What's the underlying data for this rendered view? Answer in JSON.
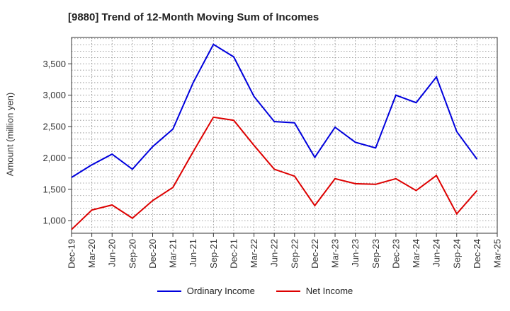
{
  "chart_data": {
    "type": "line",
    "title": "[9880]  Trend of 12-Month Moving Sum of Incomes",
    "xlabel": "",
    "ylabel": "Amount (million yen)",
    "categories": [
      "Dec-19",
      "Mar-20",
      "Jun-20",
      "Sep-20",
      "Dec-20",
      "Mar-21",
      "Jun-21",
      "Sep-21",
      "Dec-21",
      "Mar-22",
      "Jun-22",
      "Sep-22",
      "Dec-22",
      "Mar-23",
      "Jun-23",
      "Sep-23",
      "Dec-23",
      "Mar-24",
      "Jun-24",
      "Sep-24",
      "Dec-24",
      "Mar-25"
    ],
    "ylim": [
      800,
      3920
    ],
    "yticks": [
      1000,
      1500,
      2000,
      2500,
      3000,
      3500
    ],
    "ytick_labels": [
      "1,000",
      "1,500",
      "2,000",
      "2,500",
      "3,000",
      "3,500"
    ],
    "grid": true,
    "legend_position": "bottom-center",
    "series": [
      {
        "name": "Ordinary Income",
        "color": "#0000dd",
        "values": [
          1690,
          1890,
          2060,
          1820,
          2180,
          2460,
          3200,
          3810,
          3610,
          2980,
          2580,
          2560,
          2010,
          2490,
          2250,
          2160,
          3000,
          2880,
          3290,
          2420,
          1980,
          null
        ]
      },
      {
        "name": "Net Income",
        "color": "#dd0000",
        "values": [
          860,
          1170,
          1250,
          1040,
          1320,
          1530,
          2100,
          2650,
          2600,
          2200,
          1820,
          1710,
          1240,
          1670,
          1590,
          1580,
          1670,
          1480,
          1720,
          1110,
          1480,
          null
        ]
      }
    ]
  }
}
